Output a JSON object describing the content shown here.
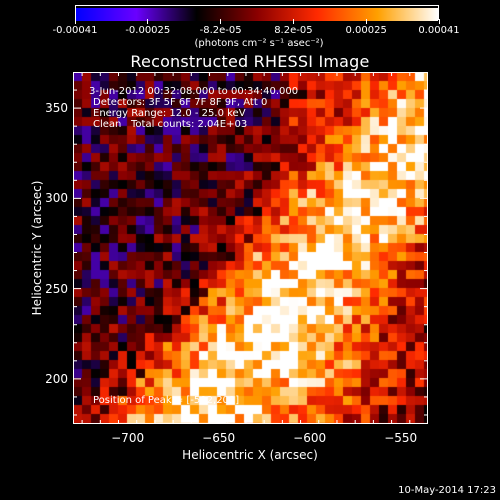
{
  "colorbar": {
    "colormap": "black-blue-red-yellow-white",
    "colors": [
      "#0000ff",
      "#6a00ff",
      "#000000",
      "#8a0000",
      "#ff2a00",
      "#ffa000",
      "#ffffff"
    ],
    "tick_labels": [
      "-0.00041",
      "-0.00025",
      "-8.2e-05",
      "8.2e-05",
      "0.00025",
      "0.00041"
    ],
    "units": "(photons cm⁻² s⁻¹ asec⁻²)"
  },
  "chart_data": {
    "type": "heatmap",
    "title": "Reconstructed RHESSI Image",
    "xlabel": "Heliocentric X (arcsec)",
    "ylabel": "Heliocentric Y (arcsec)",
    "xlim": [
      -730,
      -535
    ],
    "ylim": [
      175,
      370
    ],
    "x_ticks": [
      -700,
      -650,
      -600,
      -550
    ],
    "y_ticks": [
      200,
      250,
      300,
      350
    ],
    "x_tick_labels": [
      "−700",
      "−650",
      "−600",
      "−550"
    ],
    "y_tick_labels": [
      "200",
      "250",
      "300",
      "350"
    ],
    "value_range": [
      -0.00041,
      0.00041
    ],
    "peak": [
      -592,
      201
    ],
    "annotations": {
      "time": "3-Jun-2012 00:32:08.000 to 00:34:40.000",
      "detectors": "Detectors: 3F 5F 6F 7F 8F 9F, Att 0",
      "energy": "Energy Range: 12.0 - 25.0 keV",
      "method": "Clean",
      "counts": "Total counts: 2.04E+03",
      "peak_text": "Position of Peak = [-592,201]"
    }
  },
  "footer": "10-May-2014 17:23"
}
